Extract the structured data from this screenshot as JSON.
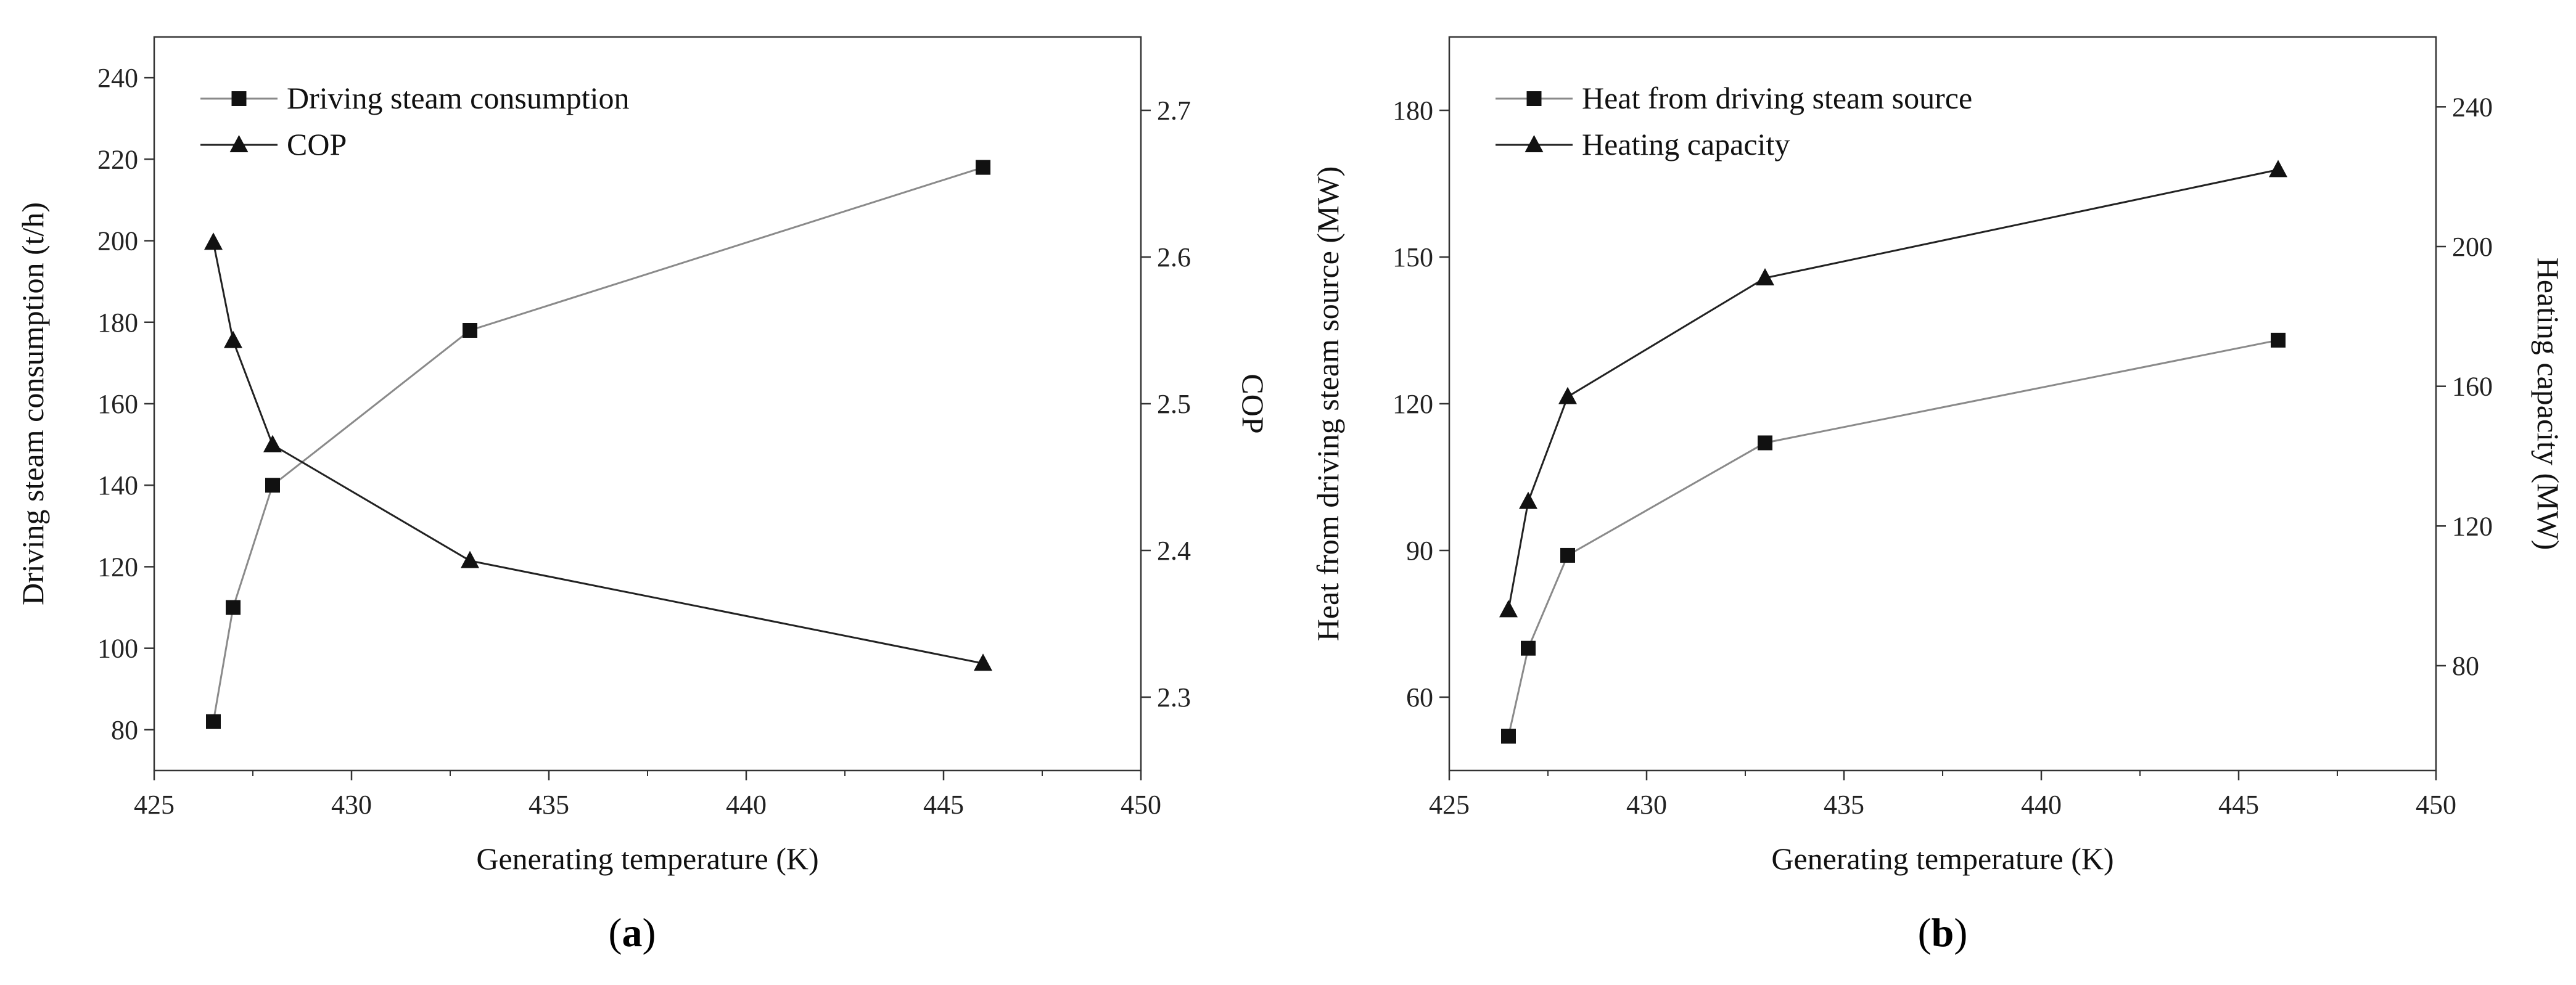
{
  "chart_data": [
    {
      "panel_label": "a",
      "type": "line",
      "xlabel": "Generating temperature (K)",
      "xlim": [
        425,
        450
      ],
      "xticks": [
        425,
        430,
        435,
        440,
        445,
        450
      ],
      "y_left": {
        "label": "Driving steam consumption (t/h)",
        "lim": [
          70,
          250
        ],
        "ticks": [
          80,
          100,
          120,
          140,
          160,
          180,
          200,
          220,
          240
        ]
      },
      "y_right": {
        "label": "COP",
        "lim": [
          2.25,
          2.75
        ],
        "ticks": [
          2.3,
          2.4,
          2.5,
          2.6,
          2.7
        ]
      },
      "legend_position": "top-left",
      "series": [
        {
          "name": "Driving steam consumption",
          "axis": "left",
          "marker": "square",
          "line_color": "#8a8a8a",
          "x": [
            426.5,
            427,
            428,
            433,
            446
          ],
          "values": [
            82,
            110,
            140,
            178,
            218
          ]
        },
        {
          "name": "COP",
          "axis": "right",
          "marker": "triangle",
          "line_color": "#222222",
          "x": [
            426.5,
            427,
            428,
            433,
            446
          ],
          "values": [
            2.61,
            2.543,
            2.472,
            2.393,
            2.323
          ]
        }
      ]
    },
    {
      "panel_label": "b",
      "type": "line",
      "xlabel": "Generating temperature (K)",
      "xlim": [
        425,
        450
      ],
      "xticks": [
        425,
        430,
        435,
        440,
        445,
        450
      ],
      "y_left": {
        "label": "Heat from driving steam source (MW)",
        "lim": [
          45,
          195
        ],
        "ticks": [
          60,
          90,
          120,
          150,
          180
        ]
      },
      "y_right": {
        "label": "Heating capacity (MW)",
        "lim": [
          50,
          260
        ],
        "ticks": [
          80,
          120,
          160,
          200,
          240
        ]
      },
      "legend_position": "top-left",
      "series": [
        {
          "name": "Heat from driving steam source",
          "axis": "left",
          "marker": "square",
          "line_color": "#8a8a8a",
          "x": [
            426.5,
            427,
            428,
            433,
            446
          ],
          "values": [
            52,
            70,
            89,
            112,
            133
          ]
        },
        {
          "name": "Heating capacity",
          "axis": "right",
          "marker": "triangle",
          "line_color": "#222222",
          "x": [
            426.5,
            427,
            428,
            433,
            446
          ],
          "values": [
            96,
            127,
            157,
            191,
            222
          ]
        }
      ]
    }
  ]
}
